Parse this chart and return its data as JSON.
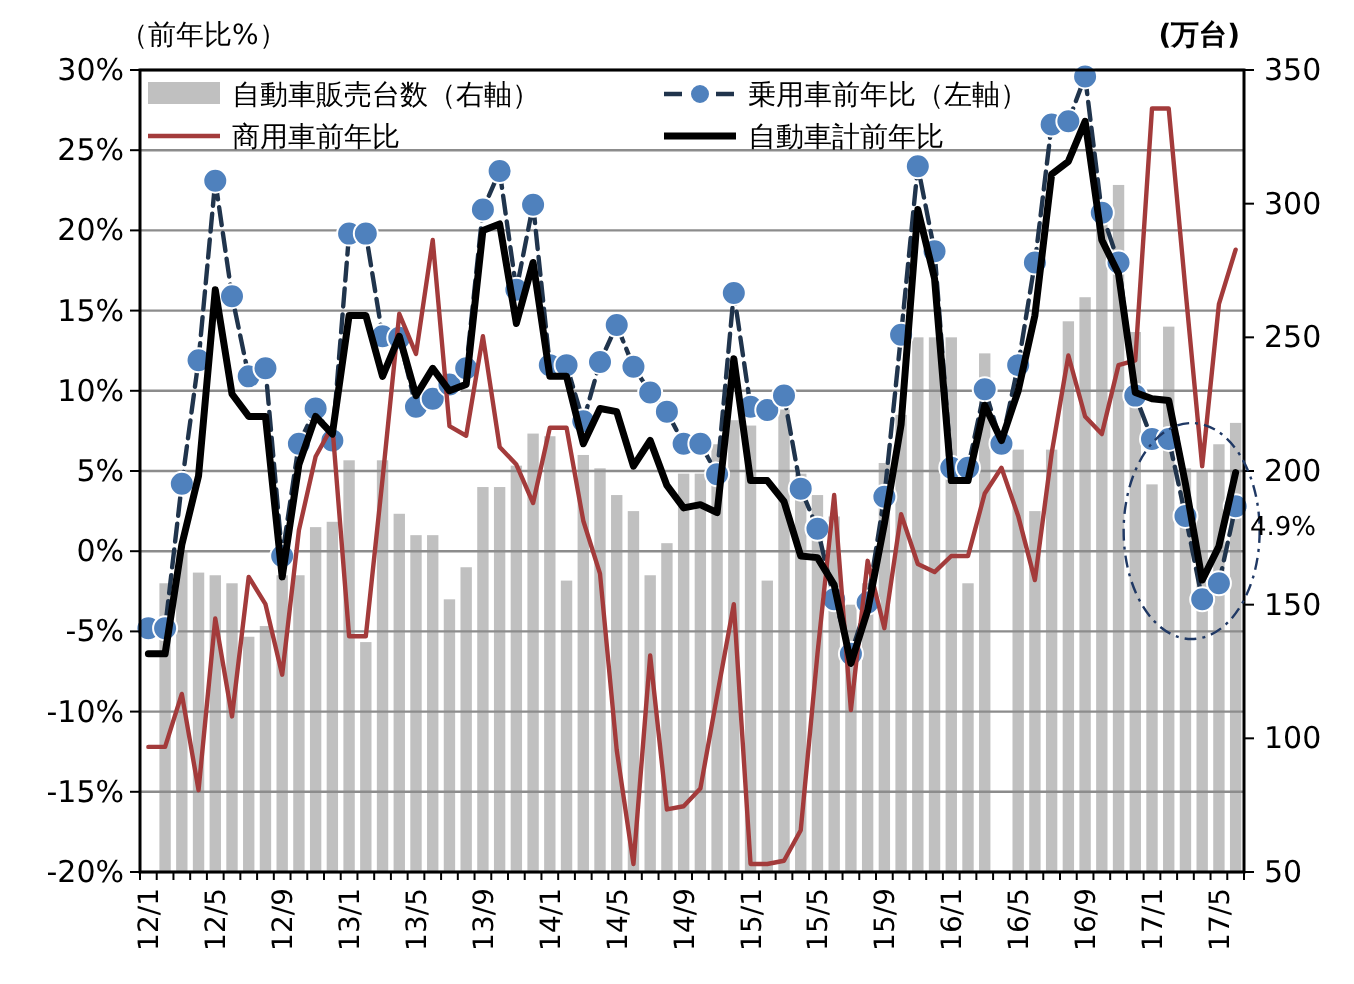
{
  "chart_data": {
    "type": "bar",
    "categories": [
      "12/1",
      null,
      null,
      null,
      "12/5",
      null,
      null,
      null,
      "12/9",
      null,
      null,
      null,
      "13/1",
      null,
      null,
      null,
      "13/5",
      null,
      null,
      null,
      "13/9",
      null,
      null,
      null,
      "14/1",
      null,
      null,
      null,
      "14/5",
      null,
      null,
      null,
      "14/9",
      null,
      null,
      null,
      "15/1",
      null,
      null,
      null,
      "15/5",
      null,
      null,
      null,
      "15/9",
      null,
      null,
      null,
      "16/1",
      null,
      null,
      null,
      "16/5",
      null,
      null,
      null,
      "16/9",
      null,
      null,
      null,
      "17/1",
      null,
      null,
      null,
      "17/5",
      null
    ],
    "series": [
      {
        "name": "自動車販売台数（右軸）",
        "axis": "y2",
        "color": "#c0c0c0",
        "values": [
          null,
          158,
          170,
          162,
          161,
          158,
          138,
          142,
          161,
          161,
          179,
          181,
          204,
          136,
          204,
          184,
          176,
          176,
          152,
          164,
          194,
          194,
          202,
          214,
          213,
          159,
          206,
          201,
          191,
          185,
          161,
          173,
          199,
          199,
          210,
          219,
          217,
          159,
          223,
          199,
          191,
          183,
          150,
          158,
          203,
          221,
          250,
          250,
          250,
          158,
          244,
          null,
          208,
          185,
          208,
          256,
          265,
          295,
          307,
          252,
          195,
          254,
          201,
          200,
          210,
          218
        ]
      },
      {
        "name": "乗用車前年比（左軸）",
        "type": "line",
        "marker": "circle",
        "line_style": "dashed",
        "color": "#4f81bd",
        "values": [
          -4.8,
          -4.8,
          4.2,
          11.9,
          23.1,
          15.9,
          10.9,
          11.4,
          -0.3,
          6.7,
          8.9,
          6.9,
          19.8,
          19.8,
          13.4,
          13.3,
          9.0,
          9.5,
          10.4,
          11.4,
          21.3,
          23.7,
          16.3,
          21.6,
          11.6,
          11.6,
          8.1,
          11.8,
          14.1,
          11.5,
          9.9,
          8.7,
          6.7,
          6.7,
          4.8,
          16.1,
          9.0,
          8.8,
          9.7,
          3.9,
          1.4,
          -3.0,
          -6.4,
          -3.2,
          3.4,
          13.5,
          24.0,
          18.7,
          5.2,
          5.2,
          10.1,
          6.7,
          11.6,
          18.0,
          26.6,
          26.8,
          29.6,
          21.1,
          18.0,
          9.7,
          7.0,
          7.0,
          2.2,
          -3.0,
          -2.0,
          2.8
        ]
      },
      {
        "name": "商用車前年比",
        "type": "line",
        "color": "#a33b3b",
        "values": [
          -12.2,
          -12.2,
          -8.9,
          -14.9,
          -4.2,
          -10.3,
          -1.6,
          -3.3,
          -7.7,
          1.3,
          5.9,
          7.8,
          -5.3,
          -5.3,
          4.5,
          14.8,
          12.3,
          19.4,
          7.8,
          7.2,
          13.4,
          6.5,
          5.4,
          3.0,
          7.7,
          7.7,
          1.9,
          -1.4,
          -12.4,
          -19.5,
          -6.5,
          -16.1,
          -15.9,
          -14.8,
          -9.0,
          -3.3,
          -19.5,
          -19.5,
          -19.3,
          -17.4,
          -6.4,
          3.5,
          -9.9,
          -0.6,
          -4.8,
          2.3,
          -0.8,
          -1.3,
          -0.3,
          -0.3,
          3.6,
          5.2,
          2.2,
          -1.8,
          6.1,
          12.2,
          8.4,
          7.3,
          11.6,
          11.9,
          27.6,
          27.6,
          16.3,
          5.3,
          15.4,
          18.8
        ]
      },
      {
        "name": "自動車計前年比",
        "type": "line",
        "color": "#000000",
        "values": [
          -6.4,
          -6.4,
          0.4,
          4.7,
          16.3,
          9.8,
          8.4,
          8.4,
          -1.6,
          5.4,
          8.4,
          7.3,
          14.7,
          14.7,
          10.9,
          13.4,
          9.7,
          11.4,
          10.0,
          10.4,
          20.0,
          20.4,
          14.2,
          18.0,
          10.9,
          10.9,
          6.7,
          8.9,
          8.7,
          5.3,
          6.9,
          4.1,
          2.7,
          2.9,
          2.4,
          12.0,
          4.4,
          4.4,
          3.1,
          -0.3,
          -0.4,
          -2.1,
          -7.0,
          -3.7,
          1.7,
          7.9,
          21.3,
          17.0,
          4.4,
          4.4,
          9.1,
          6.9,
          10.0,
          14.7,
          23.5,
          24.3,
          26.8,
          19.4,
          17.3,
          9.9,
          9.5,
          9.4,
          4.2,
          -1.8,
          0.3,
          4.9
        ]
      }
    ],
    "ylabel": "（前年比%）",
    "y2label": "(万台)",
    "ylim": [
      -20,
      30
    ],
    "yticks": [
      {
        "value": 30,
        "label": "30%"
      },
      {
        "value": 25,
        "label": "25%"
      },
      {
        "value": 20,
        "label": "20%"
      },
      {
        "value": 15,
        "label": "15%"
      },
      {
        "value": 10,
        "label": "10%"
      },
      {
        "value": 5,
        "label": "5%"
      },
      {
        "value": 0,
        "label": "0%"
      },
      {
        "value": -5,
        "label": "-5%"
      },
      {
        "value": -10,
        "label": "-10%"
      },
      {
        "value": -15,
        "label": "-15%"
      },
      {
        "value": -20,
        "label": "-20%"
      }
    ],
    "y2lim": [
      50,
      350
    ],
    "y2ticks": [
      50,
      100,
      150,
      200,
      250,
      300,
      350
    ],
    "grid": "y",
    "legend": "top",
    "annotations": [
      "4.9%"
    ]
  }
}
